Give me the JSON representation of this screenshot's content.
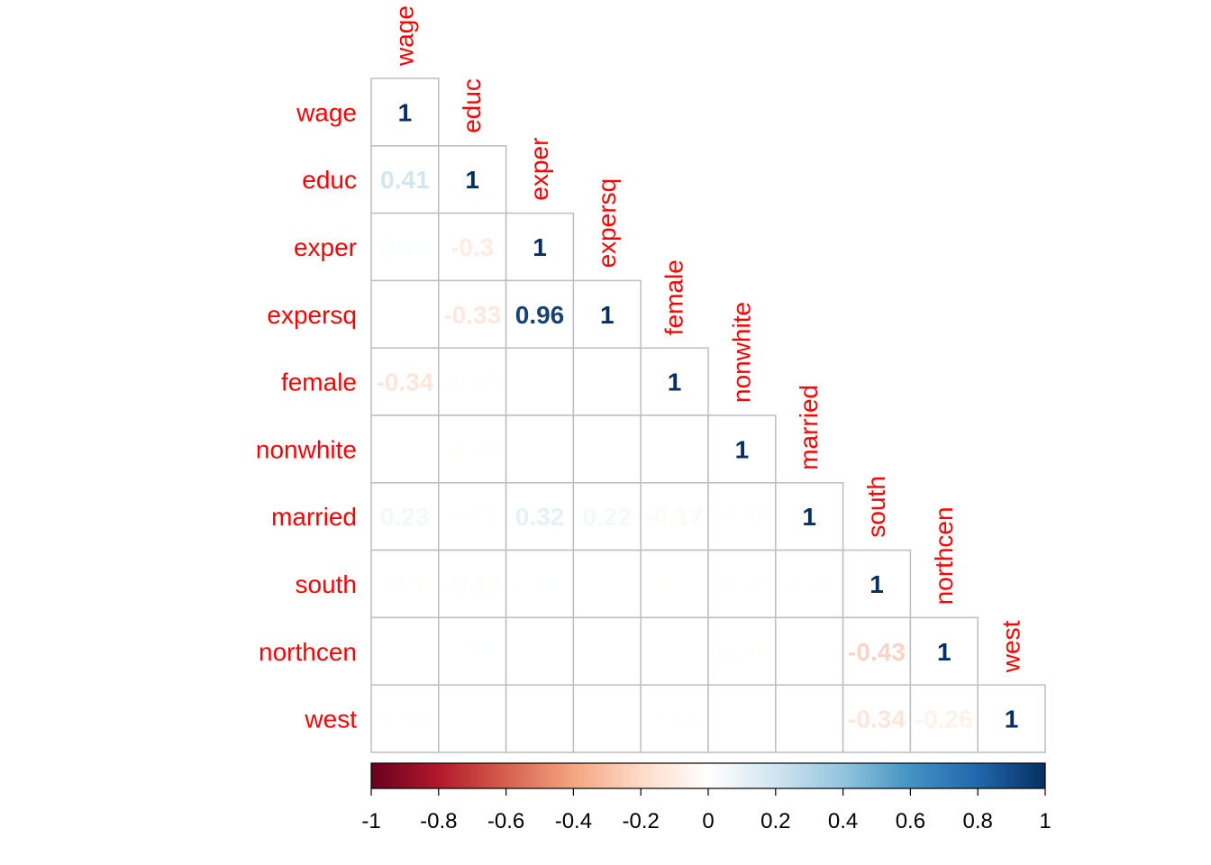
{
  "chart_data": {
    "type": "heatmap",
    "title": "",
    "layout": "lower-triangle",
    "variables": [
      "wage",
      "educ",
      "exper",
      "expersq",
      "female",
      "nonwhite",
      "married",
      "south",
      "northcen",
      "west"
    ],
    "matrix": [
      [
        1
      ],
      [
        0.41,
        1
      ],
      [
        0.11,
        -0.3,
        1
      ],
      [
        0.03,
        -0.33,
        0.96,
        1
      ],
      [
        -0.34,
        -0.09,
        -0.04,
        -0.03,
        1
      ],
      [
        -0.04,
        -0.08,
        0.01,
        0,
        -0.01,
        1
      ],
      [
        0.23,
        0.07,
        0.32,
        0.22,
        -0.17,
        -0.06,
        1
      ],
      [
        -0.1,
        -0.12,
        0.05,
        0.02,
        -0.04,
        0.1,
        0.08,
        1
      ],
      [
        -0.03,
        0.06,
        0.01,
        0.03,
        0.02,
        -0.08,
        -0.01,
        -0.43,
        1
      ],
      [
        0.09,
        0.02,
        -0.02,
        -0.02,
        0.05,
        0,
        -0.02,
        -0.34,
        -0.26,
        1
      ]
    ],
    "value_labels": [
      [
        "1"
      ],
      [
        "0.41",
        "1"
      ],
      [
        "0.11",
        "-0.3",
        "1"
      ],
      [
        "0.03",
        "-0.33",
        "0.96",
        "1"
      ],
      [
        "-0.34",
        "-0.09",
        "-0.04",
        "-0.03",
        "1"
      ],
      [
        "-0.04",
        "-0.08",
        "0.01",
        "",
        "-0.01",
        "1"
      ],
      [
        "0.23",
        "0.07",
        "0.32",
        "0.22",
        "-0.17",
        "-0.06",
        "1"
      ],
      [
        "-0.1",
        "-0.12",
        "0.05",
        "0.02",
        "-0.04",
        "0.1",
        "0.08",
        "1"
      ],
      [
        "-0.03",
        "0.06",
        "0.01",
        "0.03",
        "0.02",
        "-0.08",
        "-0.01",
        "-0.43",
        "1"
      ],
      [
        "0.09",
        "0.02",
        "-0.02",
        "-0.02",
        "0.05",
        "",
        "-0.02",
        "-0.34",
        "-0.26",
        "1"
      ]
    ],
    "colorbar": {
      "range": [
        -1,
        1
      ],
      "ticks": [
        -1,
        -0.8,
        -0.6,
        -0.4,
        -0.2,
        0,
        0.2,
        0.4,
        0.6,
        0.8,
        1
      ],
      "tick_labels": [
        "-1",
        "-0.8",
        "-0.6",
        "-0.4",
        "-0.2",
        "0",
        "0.2",
        "0.4",
        "0.6",
        "0.8",
        "1"
      ],
      "position": "bottom"
    },
    "colors": {
      "label": "#ff0000",
      "scale": [
        "#67001f",
        "#b2182b",
        "#d6604d",
        "#f4a582",
        "#fddbc7",
        "#ffffff",
        "#d1e5f0",
        "#92c5de",
        "#4393c3",
        "#2166ac",
        "#053061"
      ],
      "grid": "#bebebe"
    }
  }
}
